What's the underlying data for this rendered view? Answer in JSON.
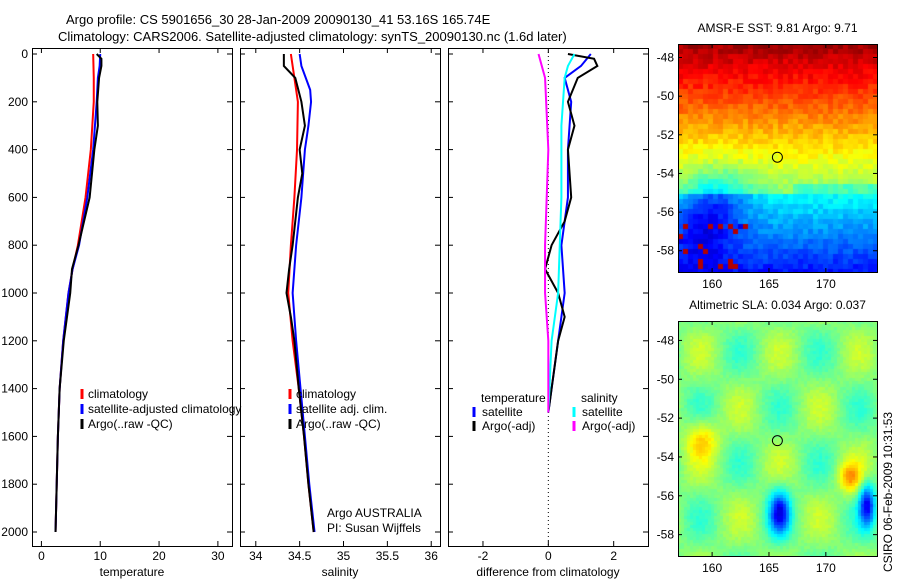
{
  "title": {
    "line1": "Argo profile: CS 5901656_30 28-Jan-2009 20090130_41 53.16S 165.74E",
    "line2": "Climatology: CARS2006. Satellite-adjusted climatology: synTS_20090130.nc (1.6d later)"
  },
  "footer": "CSIRO 06-Feb-2009 10:31:53",
  "credit": {
    "line1": "Argo AUSTRALIA",
    "line2": "PI: Susan Wijffels"
  },
  "chart_data": [
    {
      "type": "line",
      "xlabel": "temperature",
      "ylabel": "",
      "xlim": [
        -1.6,
        32.4
      ],
      "ylim": [
        2000,
        0
      ],
      "ylim_reversed": true,
      "xticks": [
        0,
        10,
        20,
        30
      ],
      "yticks": [
        0,
        200,
        400,
        600,
        800,
        1000,
        1200,
        1400,
        1600,
        1800,
        2000
      ],
      "legend": {
        "placement": "center-left",
        "entries": [
          "climatology",
          "satellite-adjusted climatology",
          "Argo(..raw -QC)"
        ]
      },
      "series": [
        {
          "name": "climatology",
          "color": "#ff0000",
          "depth": [
            0,
            100,
            200,
            400,
            600,
            800,
            900,
            1000,
            1200,
            1400,
            1600,
            1800,
            2000
          ],
          "values": [
            8.8,
            8.9,
            8.9,
            8.4,
            7.5,
            6.2,
            5.3,
            4.6,
            3.7,
            3.1,
            2.8,
            2.6,
            2.4
          ]
        },
        {
          "name": "satellite-adjusted climatology",
          "color": "#0000ff",
          "depth": [
            0,
            50,
            100,
            200,
            400,
            600,
            800,
            900,
            1000,
            1200,
            1400,
            1600,
            1800,
            2000
          ],
          "values": [
            10.0,
            9.9,
            9.6,
            9.4,
            8.8,
            7.8,
            6.4,
            5.3,
            4.6,
            3.7,
            3.1,
            2.8,
            2.6,
            2.4
          ]
        },
        {
          "name": "Argo(..raw -QC)",
          "color": "#000000",
          "depth": [
            0,
            20,
            50,
            100,
            200,
            300,
            400,
            600,
            800,
            900,
            1000,
            1200,
            1400,
            1600,
            1800,
            2000
          ],
          "values": [
            9.4,
            10.2,
            10.2,
            9.8,
            9.5,
            9.6,
            9.0,
            8.2,
            6.3,
            5.2,
            4.9,
            3.8,
            3.1,
            2.8,
            2.6,
            2.4
          ]
        }
      ]
    },
    {
      "type": "line",
      "xlabel": "salinity",
      "xlim": [
        33.82,
        36.1
      ],
      "ylim": [
        2000,
        0
      ],
      "xticks": [
        34,
        34.5,
        35,
        35.5,
        36
      ],
      "yticks": [
        0,
        200,
        400,
        600,
        800,
        1000,
        1200,
        1400,
        1600,
        1800,
        2000
      ],
      "legend": {
        "placement": "center-left",
        "entries": [
          "climatology",
          "satellite adj. clim.",
          "Argo(..raw -QC)"
        ]
      },
      "series": [
        {
          "name": "climatology",
          "color": "#ff0000",
          "depth": [
            0,
            100,
            200,
            400,
            600,
            800,
            1000,
            1200,
            1400,
            1600,
            1800,
            2000
          ],
          "values": [
            34.4,
            34.44,
            34.48,
            34.47,
            34.44,
            34.4,
            34.37,
            34.42,
            34.49,
            34.55,
            34.6,
            34.66
          ]
        },
        {
          "name": "satellite adj. clim.",
          "color": "#0000ff",
          "depth": [
            0,
            50,
            150,
            200,
            300,
            400,
            600,
            800,
            1000,
            1200,
            1400,
            1600,
            1800,
            2000
          ],
          "values": [
            34.5,
            34.52,
            34.62,
            34.63,
            34.6,
            34.56,
            34.52,
            34.46,
            34.42,
            34.46,
            34.51,
            34.56,
            34.61,
            34.67
          ]
        },
        {
          "name": "Argo(..raw -QC)",
          "color": "#000000",
          "depth": [
            0,
            50,
            100,
            200,
            300,
            400,
            500,
            600,
            800,
            900,
            1000,
            1100,
            1200,
            1400,
            1600,
            1800,
            2000
          ],
          "values": [
            34.32,
            34.32,
            34.45,
            34.52,
            34.56,
            34.5,
            34.53,
            34.48,
            34.42,
            34.38,
            34.35,
            34.4,
            34.44,
            34.49,
            34.55,
            34.6,
            34.66
          ]
        }
      ]
    },
    {
      "type": "line",
      "xlabel": "difference from climatology",
      "xlim": [
        -3.07,
        3.05
      ],
      "ylim": [
        2000,
        0
      ],
      "xticks": [
        -2,
        0,
        2
      ],
      "yticks": [
        0,
        200,
        400,
        600,
        800,
        1000,
        1200,
        1400,
        1600,
        1800,
        2000
      ],
      "legend": {
        "placement": "center",
        "headers": [
          "temperature",
          "salinity"
        ],
        "entries": [
          "satellite",
          "Argo(-adj)",
          "satellite",
          "Argo(-adj)"
        ]
      },
      "series": [
        {
          "name": "temperature satellite",
          "color": "#0000ff",
          "depth": [
            0,
            50,
            100,
            200,
            400,
            600,
            800,
            1000,
            1200,
            1400,
            1500
          ],
          "values": [
            1.3,
            1.0,
            0.5,
            0.7,
            0.6,
            0.6,
            0.4,
            0.5,
            0.3,
            0.1,
            0.0
          ]
        },
        {
          "name": "temperature Argo(-adj)",
          "color": "#000000",
          "depth": [
            0,
            20,
            50,
            100,
            200,
            300,
            400,
            600,
            700,
            800,
            900,
            1000,
            1100,
            1200,
            1400,
            1500
          ],
          "values": [
            0.6,
            1.4,
            1.5,
            0.9,
            0.6,
            0.8,
            0.6,
            0.7,
            0.5,
            0.1,
            -0.1,
            0.3,
            0.5,
            0.3,
            0.1,
            0.0
          ]
        },
        {
          "name": "salinity satellite",
          "color": "#00ffff",
          "depth": [
            0,
            50,
            100,
            300,
            600,
            1000,
            1200,
            1500
          ],
          "values": [
            0.8,
            0.6,
            0.5,
            0.4,
            0.4,
            0.3,
            0.1,
            0.0
          ]
        },
        {
          "name": "salinity Argo(-adj)",
          "color": "#ff00ff",
          "depth": [
            0,
            50,
            100,
            400,
            800,
            1000,
            1200,
            1500
          ],
          "values": [
            -0.3,
            -0.2,
            -0.1,
            0.0,
            -0.1,
            -0.1,
            0.0,
            0.0
          ]
        }
      ]
    },
    {
      "type": "heatmap",
      "title": "AMSR-E SST: 9.81 Argo: 9.71",
      "xlim": [
        157,
        174.5
      ],
      "ylim": [
        -59.1,
        -47.3
      ],
      "xticks": [
        160,
        165,
        170
      ],
      "yticks": [
        -48,
        -50,
        -52,
        -54,
        -56,
        -58
      ],
      "marker": {
        "lon": 165.74,
        "lat": -53.16
      }
    },
    {
      "type": "heatmap",
      "title": "Altimetric SLA: 0.034 Argo: 0.037",
      "xlim": [
        157,
        174.5
      ],
      "ylim": [
        -59.1,
        -47.0
      ],
      "xticks": [
        160,
        165,
        170
      ],
      "yticks": [
        -48,
        -50,
        -52,
        -54,
        -56,
        -58
      ],
      "marker": {
        "lon": 165.74,
        "lat": -53.16
      }
    }
  ]
}
